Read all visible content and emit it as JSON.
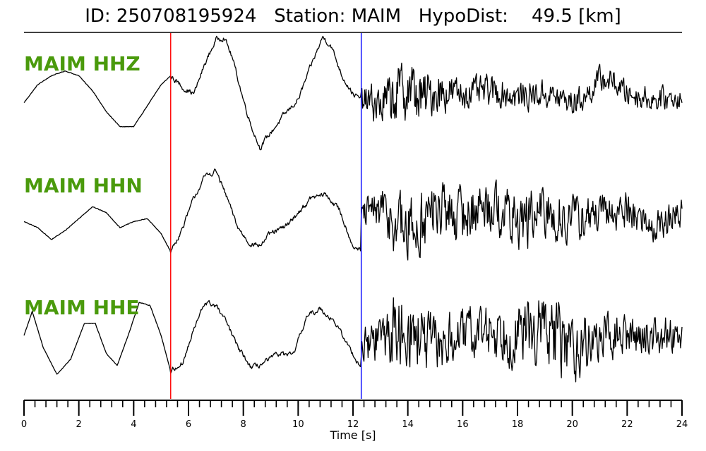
{
  "title": "ID: 250708195924   Station: MAIM   HypoDist:    49.5 [km]",
  "chart_data": {
    "type": "line",
    "title": "ID: 250708195924   Station: MAIM   HypoDist:    49.5 [km]",
    "xlabel": "Time [s]",
    "ylabel": "",
    "xlim": [
      0,
      24
    ],
    "xticks": [
      0,
      2,
      4,
      6,
      8,
      10,
      12,
      14,
      16,
      18,
      20,
      22,
      24
    ],
    "minor_tick_step": 0.4,
    "p_pick": 5.35,
    "s_pick": 12.3,
    "p_pick_color": "#ff0000",
    "s_pick_color": "#0000ff",
    "trace_color": "#000000",
    "label_color": "#4a9a0c",
    "series": [
      {
        "name": "MAIM HHZ",
        "points": [
          [
            0,
            -0.15
          ],
          [
            0.5,
            0.15
          ],
          [
            1.0,
            0.3
          ],
          [
            1.5,
            0.38
          ],
          [
            2.0,
            0.3
          ],
          [
            2.5,
            0.05
          ],
          [
            3.0,
            -0.3
          ],
          [
            3.5,
            -0.55
          ],
          [
            4.0,
            -0.55
          ],
          [
            4.5,
            -0.2
          ],
          [
            5.0,
            0.15
          ],
          [
            5.35,
            0.3
          ],
          [
            5.8,
            0.1
          ],
          [
            6.2,
            0.0
          ],
          [
            6.6,
            0.5
          ],
          [
            7.0,
            0.9
          ],
          [
            7.3,
            0.95
          ],
          [
            7.6,
            0.6
          ],
          [
            8.0,
            -0.1
          ],
          [
            8.3,
            -0.55
          ],
          [
            8.6,
            -0.9
          ],
          [
            9.0,
            -0.65
          ],
          [
            9.5,
            -0.35
          ],
          [
            10.0,
            -0.1
          ],
          [
            10.5,
            0.5
          ],
          [
            10.9,
            0.95
          ],
          [
            11.2,
            0.8
          ],
          [
            11.6,
            0.3
          ],
          [
            12.0,
            0.0
          ],
          [
            12.3,
            -0.1
          ]
        ],
        "noise_from": 12.3,
        "noise_points": [
          [
            12.3,
            -0.1
          ],
          [
            13.0,
            -0.2
          ],
          [
            14.0,
            0.1
          ],
          [
            14.5,
            -0.1
          ],
          [
            15.0,
            0.05
          ],
          [
            16.0,
            0.0
          ],
          [
            17.0,
            0.05
          ],
          [
            18.0,
            -0.05
          ],
          [
            19.0,
            0.0
          ],
          [
            20.0,
            -0.15
          ],
          [
            20.5,
            -0.05
          ],
          [
            21.0,
            0.25
          ],
          [
            21.5,
            0.2
          ],
          [
            22.0,
            0.0
          ],
          [
            23.0,
            -0.1
          ],
          [
            24.0,
            -0.05
          ]
        ],
        "noise_amp": [
          [
            12.3,
            0.3
          ],
          [
            14.0,
            0.75
          ],
          [
            14.5,
            0.6
          ],
          [
            16.0,
            0.35
          ],
          [
            24.0,
            0.25
          ]
        ]
      },
      {
        "name": "MAIM HHN",
        "points": [
          [
            0,
            -0.1
          ],
          [
            0.5,
            -0.2
          ],
          [
            1.0,
            -0.4
          ],
          [
            1.5,
            -0.25
          ],
          [
            2.0,
            -0.05
          ],
          [
            2.5,
            0.15
          ],
          [
            3.0,
            0.05
          ],
          [
            3.5,
            -0.2
          ],
          [
            4.0,
            -0.1
          ],
          [
            4.5,
            -0.05
          ],
          [
            5.0,
            -0.3
          ],
          [
            5.35,
            -0.6
          ],
          [
            5.8,
            -0.2
          ],
          [
            6.2,
            0.3
          ],
          [
            6.6,
            0.65
          ],
          [
            7.0,
            0.75
          ],
          [
            7.4,
            0.3
          ],
          [
            7.8,
            -0.2
          ],
          [
            8.2,
            -0.45
          ],
          [
            8.6,
            -0.5
          ],
          [
            9.0,
            -0.3
          ],
          [
            9.5,
            -0.2
          ],
          [
            10.0,
            0.05
          ],
          [
            10.5,
            0.3
          ],
          [
            11.0,
            0.35
          ],
          [
            11.5,
            0.1
          ],
          [
            12.0,
            -0.5
          ],
          [
            12.3,
            -0.6
          ]
        ],
        "noise_from": 12.3,
        "noise_points": [
          [
            12.3,
            0.0
          ],
          [
            13.0,
            0.1
          ],
          [
            14.0,
            -0.3
          ],
          [
            15.0,
            0.1
          ],
          [
            16.0,
            0.0
          ],
          [
            17.0,
            0.2
          ],
          [
            18.0,
            -0.1
          ],
          [
            19.0,
            0.0
          ],
          [
            20.0,
            -0.05
          ],
          [
            21.0,
            0.0
          ],
          [
            22.0,
            0.1
          ],
          [
            23.0,
            -0.2
          ],
          [
            24.0,
            0.05
          ]
        ],
        "noise_amp": [
          [
            12.3,
            0.3
          ],
          [
            13.5,
            0.7
          ],
          [
            14.0,
            0.85
          ],
          [
            15.0,
            0.65
          ],
          [
            17.0,
            0.6
          ],
          [
            19.0,
            0.65
          ],
          [
            21.0,
            0.45
          ],
          [
            24.0,
            0.35
          ]
        ]
      },
      {
        "name": "MAIM HHE",
        "points": [
          [
            0,
            0.0
          ],
          [
            0.3,
            0.4
          ],
          [
            0.7,
            -0.2
          ],
          [
            1.2,
            -0.65
          ],
          [
            1.7,
            -0.4
          ],
          [
            2.2,
            0.2
          ],
          [
            2.6,
            0.2
          ],
          [
            3.0,
            -0.3
          ],
          [
            3.4,
            -0.5
          ],
          [
            3.8,
            0.0
          ],
          [
            4.2,
            0.55
          ],
          [
            4.6,
            0.5
          ],
          [
            5.0,
            0.0
          ],
          [
            5.35,
            -0.6
          ],
          [
            5.8,
            -0.45
          ],
          [
            6.2,
            0.1
          ],
          [
            6.6,
            0.55
          ],
          [
            7.0,
            0.5
          ],
          [
            7.4,
            0.2
          ],
          [
            7.8,
            -0.2
          ],
          [
            8.3,
            -0.55
          ],
          [
            8.8,
            -0.45
          ],
          [
            9.3,
            -0.3
          ],
          [
            9.8,
            -0.35
          ],
          [
            10.3,
            0.3
          ],
          [
            10.8,
            0.45
          ],
          [
            11.3,
            0.25
          ],
          [
            11.8,
            -0.15
          ],
          [
            12.3,
            -0.55
          ]
        ],
        "noise_from": 12.3,
        "noise_points": [
          [
            12.3,
            -0.2
          ],
          [
            13.0,
            0.0
          ],
          [
            14.0,
            0.1
          ],
          [
            15.0,
            -0.2
          ],
          [
            16.0,
            0.0
          ],
          [
            17.0,
            0.1
          ],
          [
            18.0,
            0.0
          ],
          [
            19.0,
            0.1
          ],
          [
            20.0,
            -0.2
          ],
          [
            21.0,
            -0.05
          ],
          [
            22.0,
            0.0
          ],
          [
            23.0,
            0.0
          ],
          [
            24.0,
            0.05
          ]
        ],
        "noise_amp": [
          [
            12.3,
            0.35
          ],
          [
            13.5,
            0.8
          ],
          [
            14.5,
            0.75
          ],
          [
            16.0,
            0.55
          ],
          [
            18.0,
            0.7
          ],
          [
            19.5,
            0.85
          ],
          [
            21.0,
            0.5
          ],
          [
            24.0,
            0.4
          ]
        ]
      }
    ]
  }
}
